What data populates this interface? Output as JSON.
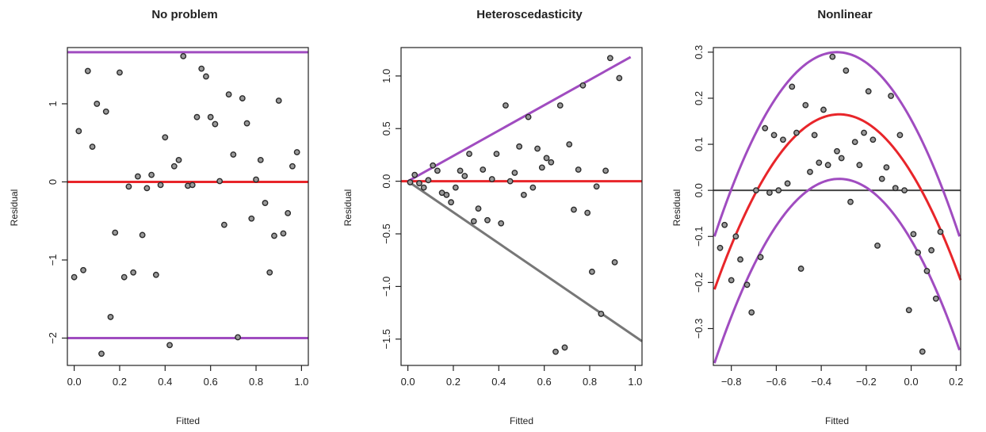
{
  "chart_data": [
    {
      "type": "scatter",
      "title": "No problem",
      "xlabel": "Fitted",
      "ylabel": "Residual",
      "xlim": [
        -0.03,
        1.03
      ],
      "ylim": [
        -2.35,
        1.72
      ],
      "xticks": [
        0.0,
        0.2,
        0.4,
        0.6,
        0.8,
        1.0
      ],
      "xtick_labels": [
        "0.0",
        "0.2",
        "0.4",
        "0.6",
        "0.8",
        "1.0"
      ],
      "yticks": [
        -2,
        -1,
        0,
        1
      ],
      "ytick_labels": [
        "−2",
        "−1",
        "0",
        "1"
      ],
      "grid": false,
      "points": [
        [
          0.0,
          -1.22
        ],
        [
          0.02,
          0.65
        ],
        [
          0.04,
          -1.13
        ],
        [
          0.06,
          1.42
        ],
        [
          0.08,
          0.45
        ],
        [
          0.1,
          1.0
        ],
        [
          0.12,
          -2.2
        ],
        [
          0.14,
          0.9
        ],
        [
          0.16,
          -1.73
        ],
        [
          0.18,
          -0.65
        ],
        [
          0.2,
          1.4
        ],
        [
          0.22,
          -1.22
        ],
        [
          0.24,
          -0.06
        ],
        [
          0.26,
          -1.16
        ],
        [
          0.28,
          0.07
        ],
        [
          0.3,
          -0.68
        ],
        [
          0.32,
          -0.08
        ],
        [
          0.34,
          0.09
        ],
        [
          0.36,
          -1.19
        ],
        [
          0.38,
          -0.04
        ],
        [
          0.4,
          0.57
        ],
        [
          0.42,
          -2.09
        ],
        [
          0.44,
          0.2
        ],
        [
          0.46,
          0.28
        ],
        [
          0.48,
          1.61
        ],
        [
          0.5,
          -0.05
        ],
        [
          0.52,
          -0.04
        ],
        [
          0.54,
          0.83
        ],
        [
          0.56,
          1.45
        ],
        [
          0.58,
          1.35
        ],
        [
          0.6,
          0.83
        ],
        [
          0.62,
          0.74
        ],
        [
          0.64,
          0.01
        ],
        [
          0.66,
          -0.55
        ],
        [
          0.68,
          1.12
        ],
        [
          0.7,
          0.35
        ],
        [
          0.72,
          -1.99
        ],
        [
          0.74,
          1.07
        ],
        [
          0.76,
          0.75
        ],
        [
          0.78,
          -0.47
        ],
        [
          0.8,
          0.03
        ],
        [
          0.82,
          0.28
        ],
        [
          0.84,
          -0.27
        ],
        [
          0.86,
          -1.16
        ],
        [
          0.88,
          -0.69
        ],
        [
          0.9,
          1.04
        ],
        [
          0.92,
          -0.66
        ],
        [
          0.94,
          -0.4
        ],
        [
          0.96,
          0.2
        ],
        [
          0.98,
          0.38
        ]
      ],
      "lines": [
        {
          "color": "#e8252a",
          "points": [
            [
              -0.03,
              0.0
            ],
            [
              1.03,
              0.0
            ]
          ]
        },
        {
          "color": "#a04cc0",
          "points": [
            [
              -0.03,
              1.66
            ],
            [
              1.03,
              1.66
            ]
          ]
        },
        {
          "color": "#a04cc0",
          "points": [
            [
              -0.03,
              -2.0
            ],
            [
              1.03,
              -2.0
            ]
          ]
        }
      ]
    },
    {
      "type": "scatter",
      "title": "Heteroscedasticity",
      "xlabel": "Fitted",
      "ylabel": "Residual",
      "xlim": [
        -0.03,
        1.03
      ],
      "ylim": [
        -1.75,
        1.27
      ],
      "xticks": [
        0.0,
        0.2,
        0.4,
        0.6,
        0.8,
        1.0
      ],
      "xtick_labels": [
        "0.0",
        "0.2",
        "0.4",
        "0.6",
        "0.8",
        "1.0"
      ],
      "yticks": [
        -1.5,
        -1.0,
        -0.5,
        0.0,
        0.5,
        1.0
      ],
      "ytick_labels": [
        "−1.5",
        "−1.0",
        "−0.5",
        "0.0",
        "0.5",
        "1.0"
      ],
      "grid": false,
      "points": [
        [
          0.01,
          -0.01
        ],
        [
          0.03,
          0.06
        ],
        [
          0.05,
          -0.02
        ],
        [
          0.07,
          -0.06
        ],
        [
          0.09,
          0.01
        ],
        [
          0.11,
          0.15
        ],
        [
          0.13,
          0.1
        ],
        [
          0.15,
          -0.11
        ],
        [
          0.17,
          -0.13
        ],
        [
          0.19,
          -0.2
        ],
        [
          0.21,
          -0.06
        ],
        [
          0.23,
          0.1
        ],
        [
          0.25,
          0.05
        ],
        [
          0.27,
          0.26
        ],
        [
          0.29,
          -0.38
        ],
        [
          0.31,
          -0.26
        ],
        [
          0.33,
          0.11
        ],
        [
          0.35,
          -0.37
        ],
        [
          0.37,
          0.02
        ],
        [
          0.39,
          0.26
        ],
        [
          0.41,
          -0.4
        ],
        [
          0.43,
          0.72
        ],
        [
          0.45,
          0.0
        ],
        [
          0.47,
          0.08
        ],
        [
          0.49,
          0.33
        ],
        [
          0.51,
          -0.13
        ],
        [
          0.53,
          0.61
        ],
        [
          0.55,
          -0.06
        ],
        [
          0.57,
          0.31
        ],
        [
          0.59,
          0.13
        ],
        [
          0.61,
          0.22
        ],
        [
          0.63,
          0.18
        ],
        [
          0.65,
          -1.62
        ],
        [
          0.67,
          0.72
        ],
        [
          0.69,
          -1.58
        ],
        [
          0.71,
          0.35
        ],
        [
          0.73,
          -0.27
        ],
        [
          0.75,
          0.11
        ],
        [
          0.77,
          0.91
        ],
        [
          0.79,
          -0.3
        ],
        [
          0.81,
          -0.86
        ],
        [
          0.83,
          -0.05
        ],
        [
          0.85,
          -1.26
        ],
        [
          0.87,
          0.1
        ],
        [
          0.89,
          1.17
        ],
        [
          0.91,
          -0.77
        ],
        [
          0.93,
          0.98
        ]
      ],
      "lines": [
        {
          "color": "#e8252a",
          "points": [
            [
              -0.03,
              0.0
            ],
            [
              1.03,
              0.0
            ]
          ]
        },
        {
          "color": "#a04cc0",
          "points": [
            [
              0.0,
              0.0
            ],
            [
              0.98,
              1.18
            ]
          ]
        },
        {
          "color": "#777777",
          "points": [
            [
              0.0,
              0.0
            ],
            [
              1.03,
              -1.52
            ]
          ]
        }
      ]
    },
    {
      "type": "scatter",
      "title": "Nonlinear",
      "xlabel": "Fitted",
      "ylabel": "Residual",
      "xlim": [
        -0.88,
        0.22
      ],
      "ylim": [
        -0.38,
        0.31
      ],
      "xticks": [
        -0.8,
        -0.6,
        -0.4,
        -0.2,
        0.0,
        0.2
      ],
      "xtick_labels": [
        "−0.8",
        "−0.6",
        "−0.4",
        "−0.2",
        "0.0",
        "0.2"
      ],
      "yticks": [
        -0.3,
        -0.2,
        -0.1,
        0.0,
        0.1,
        0.2,
        0.3
      ],
      "ytick_labels": [
        "−0.3",
        "−0.2",
        "−0.1",
        "0.0",
        "0.1",
        "0.2",
        "0.3"
      ],
      "grid": false,
      "points": [
        [
          -0.85,
          -0.125
        ],
        [
          -0.83,
          -0.075
        ],
        [
          -0.8,
          -0.195
        ],
        [
          -0.78,
          -0.1
        ],
        [
          -0.76,
          -0.15
        ],
        [
          -0.73,
          -0.205
        ],
        [
          -0.71,
          -0.265
        ],
        [
          -0.69,
          0.0
        ],
        [
          -0.67,
          -0.145
        ],
        [
          -0.65,
          0.135
        ],
        [
          -0.63,
          -0.005
        ],
        [
          -0.61,
          0.12
        ],
        [
          -0.59,
          0.0
        ],
        [
          -0.57,
          0.11
        ],
        [
          -0.55,
          0.015
        ],
        [
          -0.53,
          0.225
        ],
        [
          -0.51,
          0.125
        ],
        [
          -0.49,
          -0.17
        ],
        [
          -0.47,
          0.185
        ],
        [
          -0.45,
          0.04
        ],
        [
          -0.43,
          0.12
        ],
        [
          -0.41,
          0.06
        ],
        [
          -0.39,
          0.175
        ],
        [
          -0.37,
          0.055
        ],
        [
          -0.35,
          0.29
        ],
        [
          -0.33,
          0.085
        ],
        [
          -0.31,
          0.07
        ],
        [
          -0.29,
          0.26
        ],
        [
          -0.27,
          -0.025
        ],
        [
          -0.25,
          0.105
        ],
        [
          -0.23,
          0.055
        ],
        [
          -0.21,
          0.125
        ],
        [
          -0.19,
          0.215
        ],
        [
          -0.17,
          0.11
        ],
        [
          -0.15,
          -0.12
        ],
        [
          -0.13,
          0.025
        ],
        [
          -0.11,
          0.05
        ],
        [
          -0.09,
          0.205
        ],
        [
          -0.07,
          0.005
        ],
        [
          -0.05,
          0.12
        ],
        [
          -0.03,
          0.0
        ],
        [
          -0.01,
          -0.26
        ],
        [
          0.01,
          -0.095
        ],
        [
          0.03,
          -0.135
        ],
        [
          0.05,
          -0.35
        ],
        [
          0.07,
          -0.175
        ],
        [
          0.09,
          -0.13
        ],
        [
          0.11,
          -0.235
        ],
        [
          0.13,
          -0.09
        ]
      ],
      "lines": [
        {
          "color": "#444444",
          "points": [
            [
              -0.88,
              0.0
            ],
            [
              0.22,
              0.0
            ]
          ]
        }
      ],
      "curves": [
        {
          "color": "#a04cc0",
          "peak_x": -0.33,
          "peak_y": 0.3,
          "x_range": [
            -0.875,
            0.215
          ],
          "end_y": -0.1
        },
        {
          "color": "#e8252a",
          "peak_x": -0.32,
          "peak_y": 0.165,
          "x_range": [
            -0.875,
            0.22
          ],
          "end_y": -0.215
        },
        {
          "color": "#a04cc0",
          "peak_x": -0.32,
          "peak_y": 0.025,
          "x_range": [
            -0.875,
            0.215
          ],
          "end_y": -0.375
        }
      ]
    }
  ]
}
